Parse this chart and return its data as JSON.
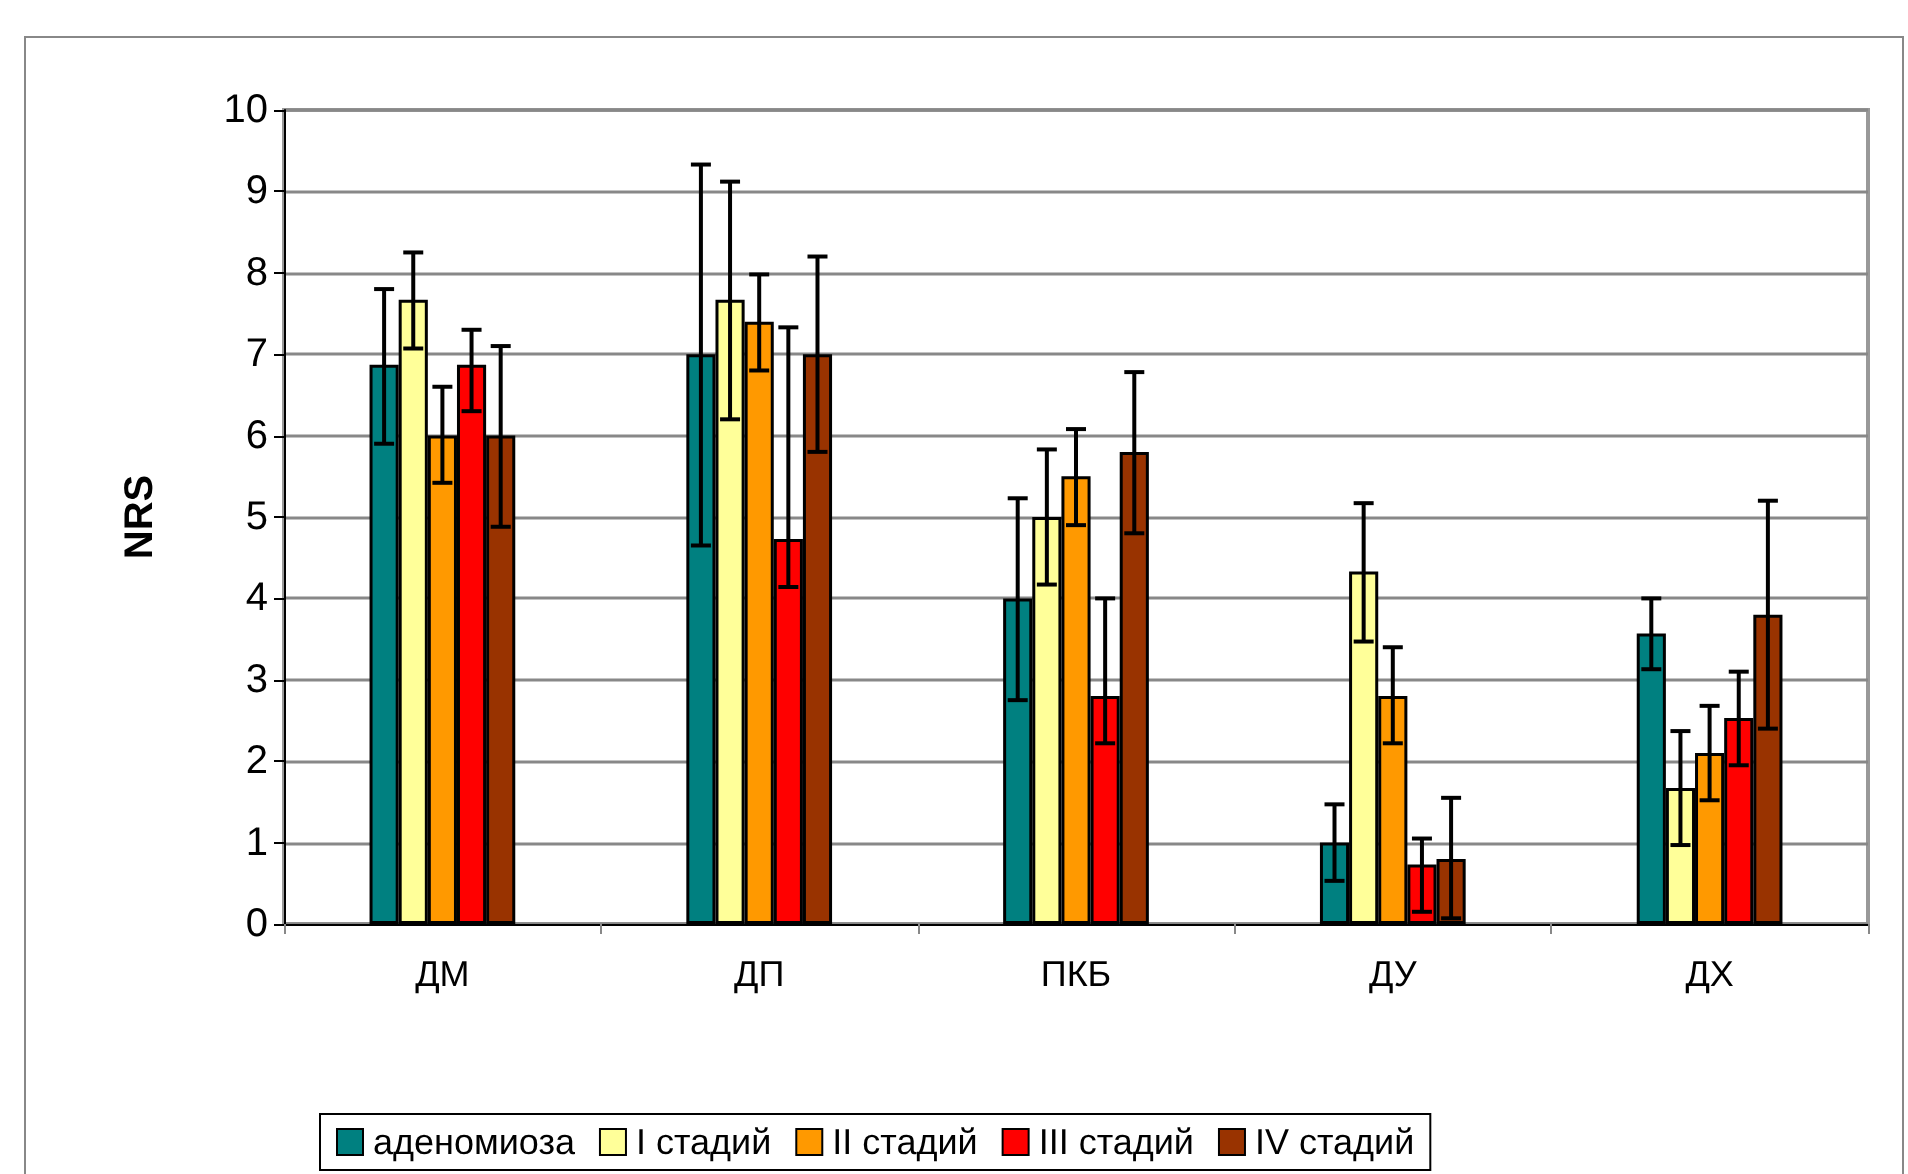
{
  "chart_data": {
    "type": "bar",
    "ylabel": "NRS",
    "categories": [
      "ДМ",
      "ДП",
      "ПКБ",
      "ДУ",
      "ДХ"
    ],
    "series": [
      {
        "name": "аденомиоза",
        "color": "#008080",
        "values": [
          6.87,
          7.0,
          4.0,
          1.0,
          3.57
        ],
        "errors": [
          [
            5.9,
            7.8
          ],
          [
            4.65,
            9.33
          ],
          [
            2.75,
            5.23
          ],
          [
            0.53,
            1.47
          ],
          [
            3.13,
            4.0
          ]
        ]
      },
      {
        "name": "I стадий",
        "color": "#ffff99",
        "values": [
          7.67,
          7.67,
          5.0,
          4.33,
          1.67
        ],
        "errors": [
          [
            7.07,
            8.25
          ],
          [
            6.2,
            9.12
          ],
          [
            4.17,
            5.83
          ],
          [
            3.47,
            5.17
          ],
          [
            0.97,
            2.37
          ]
        ]
      },
      {
        "name": "II стадий",
        "color": "#ff9900",
        "values": [
          6.0,
          7.4,
          5.5,
          2.8,
          2.1
        ],
        "errors": [
          [
            5.42,
            6.6
          ],
          [
            6.8,
            7.98
          ],
          [
            4.9,
            6.08
          ],
          [
            2.22,
            3.4
          ],
          [
            1.52,
            2.68
          ]
        ]
      },
      {
        "name": "III стадий",
        "color": "#ff0000",
        "values": [
          6.87,
          4.73,
          2.8,
          0.73,
          2.53
        ],
        "errors": [
          [
            6.3,
            7.3
          ],
          [
            4.14,
            7.33
          ],
          [
            2.22,
            4.0
          ],
          [
            0.15,
            1.05
          ],
          [
            1.95,
            3.1
          ]
        ]
      },
      {
        "name": "IV стадий",
        "color": "#993300",
        "values": [
          6.0,
          7.0,
          5.8,
          0.8,
          3.8
        ],
        "errors": [
          [
            4.88,
            7.1
          ],
          [
            5.8,
            8.2
          ],
          [
            4.8,
            6.78
          ],
          [
            0.07,
            1.55
          ],
          [
            2.4,
            5.2
          ]
        ]
      }
    ],
    "ylim": [
      0,
      10
    ],
    "yticks": [
      0,
      1,
      2,
      3,
      4,
      5,
      6,
      7,
      8,
      9,
      10
    ],
    "grid": "y",
    "legend": "bottom"
  }
}
